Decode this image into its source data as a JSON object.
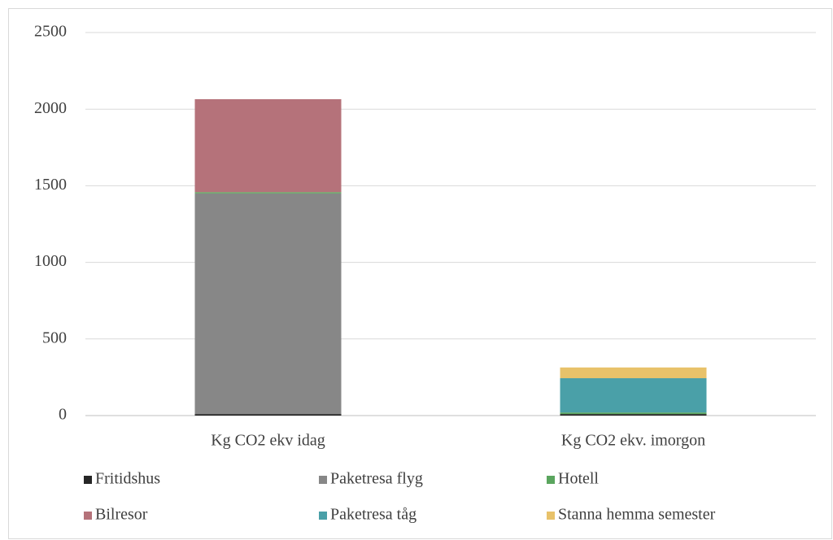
{
  "chart_data": {
    "type": "stacked_bar",
    "categories": [
      "Kg CO2 ekv idag",
      "Kg CO2 ekv. imorgon"
    ],
    "series": [
      {
        "name": "Fritidshus",
        "color": "#262626",
        "values": [
          10,
          10
        ]
      },
      {
        "name": "Paketresa flyg",
        "color": "#878787",
        "values": [
          1440,
          0
        ]
      },
      {
        "name": "Hotell",
        "color": "#5aa55e",
        "values": [
          8,
          10
        ]
      },
      {
        "name": "Bilresor",
        "color": "#b5727a",
        "values": [
          607,
          0
        ]
      },
      {
        "name": "Paketresa tåg",
        "color": "#4aa0a8",
        "values": [
          0,
          224
        ]
      },
      {
        "name": "Stanna hemma semester",
        "color": "#e8c26a",
        "values": [
          0,
          70
        ]
      }
    ],
    "ylim": [
      0,
      2500
    ],
    "yticks": [
      0,
      500,
      1000,
      1500,
      2000,
      2500
    ],
    "grid": true
  }
}
